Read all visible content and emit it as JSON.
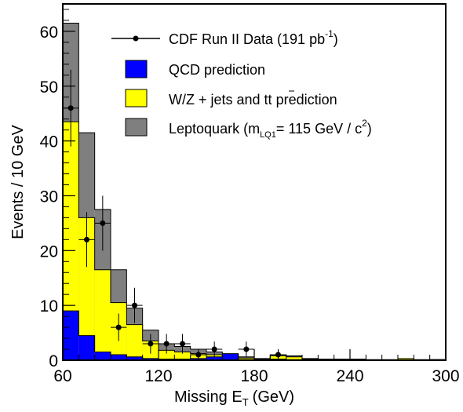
{
  "chart_data": {
    "type": "bar",
    "title": "",
    "xlabel": "Missing E",
    "xlabel_sub": "T",
    "xlabel_unit": "(GeV)",
    "ylabel": "Events / 10 GeV",
    "xlim": [
      60,
      300
    ],
    "ylim": [
      0,
      65
    ],
    "bin_width": 10,
    "xticks": [
      60,
      120,
      180,
      240,
      300
    ],
    "yticks": [
      0,
      10,
      20,
      30,
      40,
      50,
      60
    ],
    "grid": false,
    "legend_position": "top-right",
    "bin_edges": [
      60,
      70,
      80,
      90,
      100,
      110,
      120,
      130,
      140,
      150,
      160,
      170,
      180,
      190,
      200,
      210,
      220,
      230,
      240,
      250,
      260,
      270,
      280,
      290,
      300
    ],
    "series": [
      {
        "name": "Leptoquark (m",
        "name_sub": "LQ1",
        "name_end": "= 115 GeV / c",
        "name_sup": "2",
        "name_close": ")",
        "kind": "stacked-total",
        "color": "#7f7f7f",
        "values": [
          61.5,
          41.5,
          27.5,
          16.5,
          9.5,
          5.5,
          3.0,
          2.5,
          2.0,
          1.5,
          1.0,
          0.6,
          0.3,
          1.0,
          0.8,
          0.3,
          0.2,
          0.2,
          0.2,
          0.1,
          0.1,
          0.1,
          0.1,
          0.1
        ]
      },
      {
        "name": "W/Z + jets and t",
        "name_bar": "t",
        "name_end": "prediction",
        "kind": "stacked-total",
        "color": "#ffff00",
        "values": [
          43.5,
          26.0,
          16.5,
          10.5,
          6.5,
          3.5,
          1.8,
          1.5,
          1.2,
          1.0,
          0.6,
          0.4,
          0.2,
          0.8,
          0.6,
          0.2,
          0.1,
          0.1,
          0.1,
          0.0,
          0.0,
          0.3,
          0.0,
          0.1
        ]
      },
      {
        "name": "QCD prediction",
        "kind": "stacked-total",
        "color": "#0000ff",
        "values": [
          9.0,
          4.5,
          1.5,
          1.0,
          0.6,
          0.3,
          0.2,
          0.2,
          0.3,
          0.6,
          1.2,
          0.1,
          0.1,
          0.2,
          0.1,
          0.0,
          0.0,
          0.0,
          0.0,
          0.0,
          0.0,
          0.0,
          0.0,
          0.0
        ]
      },
      {
        "name": "CDF Run II Data (191 pb",
        "name_sup": "-1",
        "name_close": ")",
        "kind": "points",
        "color": "#000000",
        "points": [
          {
            "x": 65,
            "y": 46,
            "err": 7.0
          },
          {
            "x": 75,
            "y": 22,
            "err": 5.0
          },
          {
            "x": 85,
            "y": 25,
            "err": 5.0
          },
          {
            "x": 95,
            "y": 6,
            "err": 2.5
          },
          {
            "x": 105,
            "y": 10,
            "err": 3.2
          },
          {
            "x": 115,
            "y": 3,
            "err": 1.8
          },
          {
            "x": 125,
            "y": 3,
            "err": 1.8
          },
          {
            "x": 135,
            "y": 3,
            "err": 1.8
          },
          {
            "x": 145,
            "y": 1,
            "err": 1.0
          },
          {
            "x": 155,
            "y": 2,
            "err": 1.4
          },
          {
            "x": 175,
            "y": 2,
            "err": 1.4
          },
          {
            "x": 195,
            "y": 1,
            "err": 1.0
          }
        ]
      }
    ]
  }
}
